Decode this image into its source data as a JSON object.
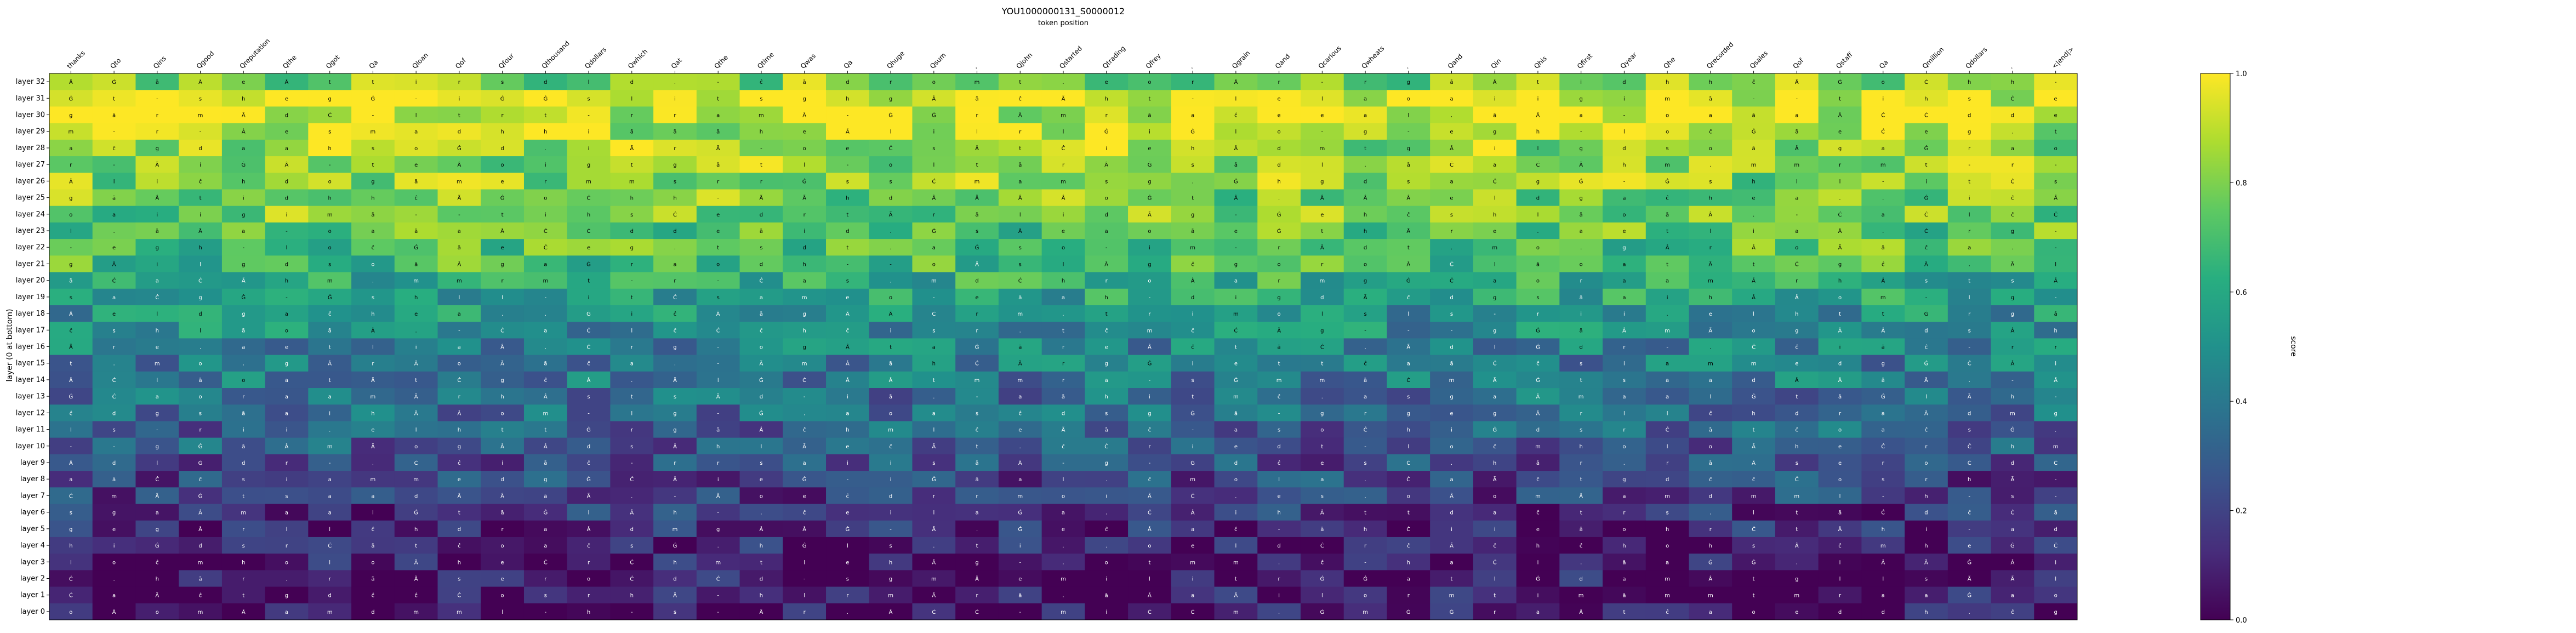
{
  "chart_data": {
    "type": "heatmap",
    "title": "YOU1000000131_S0000012",
    "subtitle": "token position",
    "ylabel": "layer (0 at bottom)",
    "colorbar_label": "score",
    "colorbar_ticks": [
      "0.0",
      "0.2",
      "0.4",
      "0.6",
      "0.8",
      "1.0"
    ],
    "colorbar_values": [
      0,
      0.2,
      0.4,
      0.6,
      0.8,
      1.0
    ],
    "vlim": [
      0,
      1
    ],
    "colormap": "viridis",
    "tokens": [
      "thanks",
      "Qto",
      "Qins",
      "Qgood",
      "Qreputation",
      "Qthe",
      "Qgot",
      "Qa",
      "Qloan",
      "Qof",
      "Qfour",
      "Qthousand",
      "Qdollars",
      "Qwhich",
      "Qat",
      "Qthe",
      "Qtime",
      "Qwas",
      "Qa",
      "Qhuge",
      "Qsum",
      ".",
      "Qjohn",
      "Qstarted",
      "Qtrading",
      "Qfrey",
      ".",
      "Qgrain",
      "Qand",
      "Qcarious",
      "Qwheats",
      ".",
      "Qand",
      "Qin",
      "Qhis",
      "Qfirst",
      "Qyear",
      "Qhe",
      "Qrecorded",
      "Qsales",
      "Qof",
      "Qstaff",
      "Qa",
      "Qmillion",
      "Qdollars",
      ".",
      "<|end|>"
    ],
    "layers": [
      "layer 32",
      "layer 31",
      "layer 30",
      "layer 29",
      "layer 28",
      "layer 27",
      "layer 26",
      "layer 25",
      "layer 24",
      "layer 23",
      "layer 22",
      "layer 21",
      "layer 20",
      "layer 19",
      "layer 18",
      "layer 17",
      "layer 16",
      "layer 15",
      "layer 14",
      "layer 13",
      "layer 12",
      "layer 11",
      "layer 10",
      "layer 9",
      "layer 8",
      "layer 7",
      "layer 6",
      "layer 5",
      "layer 4",
      "layer 3",
      "layer 2",
      "layer 1",
      "layer 0"
    ],
    "row_levels": [
      0.8,
      0.95,
      0.92,
      0.88,
      0.85,
      0.84,
      0.82,
      0.8,
      0.78,
      0.74,
      0.72,
      0.68,
      0.62,
      0.56,
      0.5,
      0.48,
      0.44,
      0.42,
      0.4,
      0.36,
      0.33,
      0.3,
      0.28,
      0.24,
      0.21,
      0.19,
      0.15,
      0.1,
      0.08,
      0.07,
      0.06,
      0.05,
      0.04
    ],
    "cell_labels": [
      "ĉ",
      "t",
      "h",
      "a",
      "o",
      "i",
      "s",
      "d",
      "e",
      "m",
      "r",
      "l",
      "Ġ",
      "Ċ",
      "ā",
      "Â",
      "Ã",
      ".",
      "-",
      "g"
    ]
  }
}
